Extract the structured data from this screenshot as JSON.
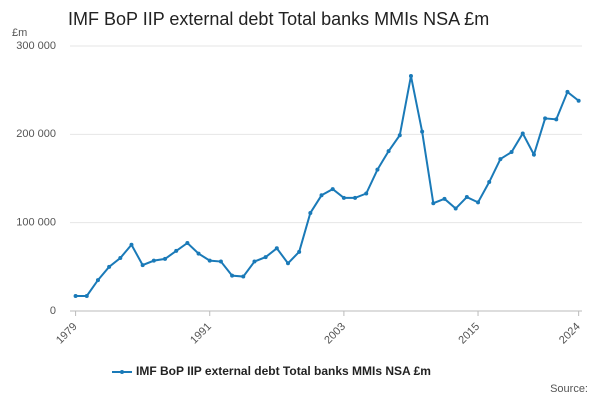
{
  "chart_data": {
    "type": "line",
    "title": "IMF BoP IIP external debt Total banks MMIs NSA £m",
    "y_unit": "£m",
    "source": "Source:",
    "x": [
      1979,
      1980,
      1981,
      1982,
      1983,
      1984,
      1985,
      1986,
      1987,
      1988,
      1989,
      1990,
      1991,
      1992,
      1993,
      1994,
      1995,
      1996,
      1997,
      1998,
      1999,
      2000,
      2001,
      2002,
      2003,
      2004,
      2005,
      2006,
      2007,
      2008,
      2009,
      2010,
      2011,
      2012,
      2013,
      2014,
      2015,
      2016,
      2017,
      2018,
      2019,
      2020,
      2021,
      2022,
      2023,
      2024
    ],
    "series": [
      {
        "name": "IMF BoP IIP external debt Total banks MMIs NSA £m",
        "color": "#1a7ab8",
        "values": [
          17000,
          17000,
          35000,
          50000,
          60000,
          75000,
          52000,
          57000,
          59000,
          68000,
          77000,
          65000,
          57000,
          56000,
          40000,
          39000,
          56000,
          61000,
          71000,
          54000,
          67000,
          111000,
          131000,
          138000,
          128000,
          128000,
          133000,
          160000,
          181000,
          199000,
          266000,
          203000,
          122000,
          127000,
          116000,
          129000,
          123000,
          146000,
          172000,
          180000,
          201000,
          177000,
          218000,
          217000,
          248000,
          238000
        ]
      }
    ],
    "xlim": [
      1978.5,
      2024.3
    ],
    "xticks": [
      1979,
      1991,
      2003,
      2015,
      2024
    ],
    "ylim": [
      0,
      300000
    ],
    "yticks": [
      0,
      {
        "value": 100000,
        "label": "100 000"
      },
      {
        "value": 200000,
        "label": "200 000"
      },
      {
        "value": 300000,
        "label": "300 000"
      }
    ],
    "grid": true
  }
}
